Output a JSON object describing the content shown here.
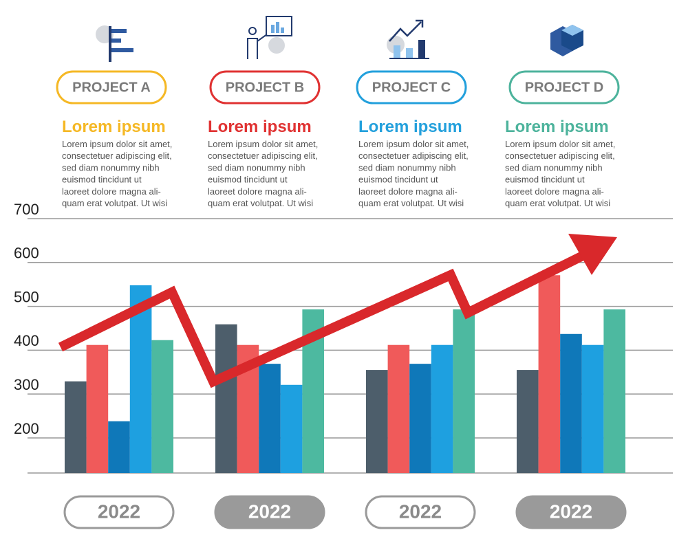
{
  "projects": [
    {
      "label": "PROJECT A",
      "title": "Lorem ipsum",
      "color": "#f5b825",
      "lines": [
        "Lorem ipsum dolor sit amet,",
        "consectetuer adipiscing elit,",
        "sed diam nonummy nibh",
        "euismod tincidunt ut",
        "laoreet dolore magna ali-",
        "quam erat volutpat. Ut wisi"
      ]
    },
    {
      "label": "PROJECT B",
      "title": "Lorem ipsum",
      "color": "#e03232",
      "lines": [
        "Lorem ipsum dolor sit amet,",
        "consectetuer adipiscing elit,",
        "sed diam nonummy nibh",
        "euismod tincidunt ut",
        "laoreet dolore magna ali-",
        "quam erat volutpat. Ut wisi"
      ]
    },
    {
      "label": "PROJECT C",
      "title": "Lorem ipsum",
      "color": "#23a0dc",
      "lines": [
        "Lorem ipsum dolor sit amet,",
        "consectetuer adipiscing elit,",
        "sed diam nonummy nibh",
        "euismod tincidunt ut",
        "laoreet dolore magna ali-",
        "quam erat volutpat. Ut wisi"
      ]
    },
    {
      "label": "PROJECT D",
      "title": "Lorem ipsum",
      "color": "#4db39c",
      "lines": [
        "Lorem ipsum dolor sit amet,",
        "consectetuer adipiscing elit,",
        "sed diam nonummy nibh",
        "euismod tincidunt ut",
        "laoreet dolore magna ali-",
        "quam erat volutpat. Ut wisi"
      ]
    }
  ],
  "chart_data": {
    "type": "bar",
    "categories": [
      "2022",
      "2022",
      "2022",
      "2022"
    ],
    "series": [
      {
        "color": "#4d5e6b",
        "values": [
          329,
          459,
          355,
          355
        ]
      },
      {
        "color": "#f05a5a",
        "values": [
          412,
          412,
          412,
          571
        ]
      },
      {
        "color": "#0f78b9",
        "values": [
          238,
          369,
          369,
          437
        ]
      },
      {
        "color": "#1ea0e0",
        "values": [
          548,
          321,
          412,
          412
        ]
      },
      {
        "color": "#4db9a0",
        "values": [
          423,
          493,
          493,
          493
        ]
      }
    ],
    "ylim": [
      120,
      700
    ],
    "yticks": [
      200,
      300,
      400,
      500,
      600,
      700
    ],
    "grid": true
  }
}
